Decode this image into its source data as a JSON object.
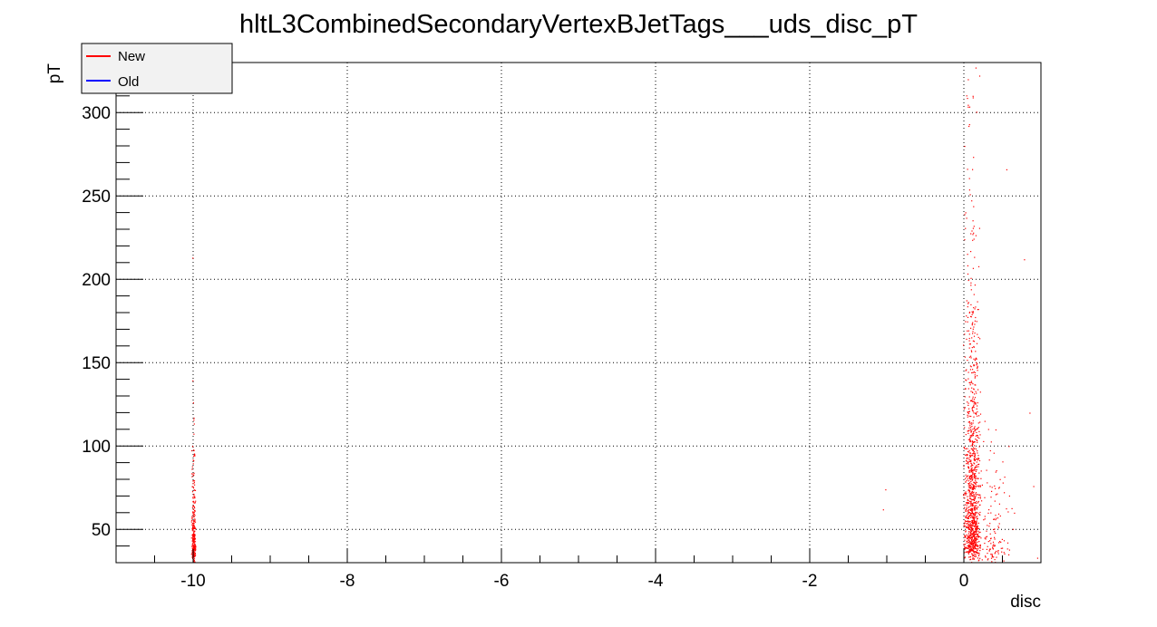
{
  "chart_data": {
    "type": "scatter",
    "title": "hltL3CombinedSecondaryVertexBJetTags___uds_disc_pT",
    "xlabel": "disc",
    "ylabel": "pT",
    "xlim": [
      -11,
      1
    ],
    "ylim": [
      30,
      330
    ],
    "grid": true,
    "x_ticks": [
      -10,
      -8,
      -6,
      -4,
      -2,
      0
    ],
    "y_ticks": [
      50,
      100,
      150,
      200,
      250,
      300
    ],
    "legend": {
      "placement": "top-left",
      "entries": [
        {
          "name": "New",
          "color": "#ff0000"
        },
        {
          "name": "Old",
          "color": "#0000ff"
        }
      ]
    },
    "series": [
      {
        "name": "New",
        "color": "#ff0000",
        "clusters": [
          {
            "x_center": -10,
            "x_spread": 0.03,
            "y_min": 30,
            "y_max": 145,
            "y_peak": 35,
            "count": 280
          },
          {
            "x_center": 0.1,
            "x_spread": 0.12,
            "y_min": 30,
            "y_max": 330,
            "y_peak": 40,
            "count": 1100
          },
          {
            "x_center": 0.35,
            "x_spread": 0.3,
            "y_min": 30,
            "y_max": 150,
            "y_peak": 35,
            "count": 160
          }
        ],
        "points": [
          {
            "x": -10.01,
            "y": 213
          },
          {
            "x": -1.02,
            "y": 74
          },
          {
            "x": -1.05,
            "y": 62
          },
          {
            "x": 0.05,
            "y": 320
          },
          {
            "x": 0.15,
            "y": 327
          },
          {
            "x": 0.55,
            "y": 266
          },
          {
            "x": 0.78,
            "y": 212
          },
          {
            "x": 0.85,
            "y": 120
          },
          {
            "x": 0.9,
            "y": 76
          },
          {
            "x": 0.58,
            "y": 100
          },
          {
            "x": 0.65,
            "y": 60
          },
          {
            "x": 0.95,
            "y": 33
          }
        ]
      },
      {
        "name": "Old",
        "color": "#0000ff",
        "clusters": [],
        "points": []
      }
    ]
  }
}
